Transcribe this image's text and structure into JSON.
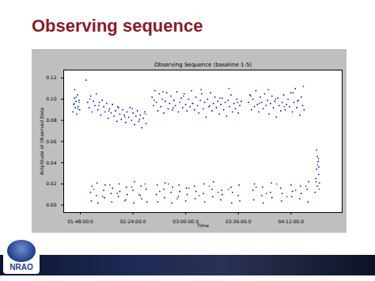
{
  "slide_title": "Observing sequence",
  "logo": "NRAO",
  "chart_data": {
    "type": "scatter",
    "title": "Observing Sequence (baseline 1-5)",
    "x_label": "Time",
    "y_label": "Amplitude of Observed Data",
    "xlim": [
      96.6,
      287
    ],
    "xticks": [
      {
        "value": 108,
        "label": "01:48:00.0"
      },
      {
        "value": 144,
        "label": "02:24:00.0"
      },
      {
        "value": 180,
        "label": "03:00:00.0"
      },
      {
        "value": 216,
        "label": "03:36:00.0"
      },
      {
        "value": 252,
        "label": "04:12:00.0"
      }
    ],
    "ylim": [
      -0.007,
      0.1275
    ],
    "yticks": [
      {
        "value": 0,
        "label": "0.00"
      },
      {
        "value": 0.02,
        "label": "0.02"
      },
      {
        "value": 0.04,
        "label": "0.04"
      },
      {
        "value": 0.06,
        "label": "0.06"
      },
      {
        "value": 0.08,
        "label": "0.08"
      },
      {
        "value": 0.1,
        "label": "0.10"
      },
      {
        "value": 0.12,
        "label": "0.12"
      }
    ],
    "grid": false,
    "series": [
      {
        "color": "#0000ff",
        "marker": "o",
        "x": [
          103,
          103.5,
          104,
          104.5,
          105,
          105.5,
          106,
          106.5,
          107,
          107.5,
          112,
          113,
          114,
          115,
          116,
          117,
          118,
          119,
          120,
          121,
          122,
          123,
          124,
          125,
          126,
          127,
          128,
          129,
          130,
          131,
          132,
          133,
          134,
          135,
          136,
          137,
          138,
          139,
          140,
          141,
          142,
          143,
          144,
          145,
          146,
          147,
          148,
          149,
          150,
          151,
          152,
          153,
          115,
          115.5,
          116,
          119,
          119.5,
          120,
          124,
          124.5,
          125,
          129,
          129.5,
          130,
          134,
          134.5,
          135,
          139,
          139.5,
          140,
          144,
          144.5,
          145,
          149,
          149.5,
          150,
          153,
          153.5,
          157,
          158,
          159,
          160,
          161,
          162,
          163,
          164,
          165,
          166,
          167,
          168,
          169,
          170,
          171,
          172,
          173,
          174,
          175,
          176,
          177,
          178,
          179,
          180,
          181,
          182,
          183,
          184,
          185,
          186,
          187,
          188,
          189,
          190,
          191,
          192,
          193,
          194,
          195,
          196,
          197,
          198,
          199,
          200,
          201,
          202,
          203,
          204,
          205,
          206,
          207,
          208,
          209,
          210,
          211,
          212,
          213,
          214,
          215,
          216,
          217,
          218,
          160,
          160.5,
          161,
          165,
          165.5,
          166,
          170,
          170.5,
          171,
          175,
          175.5,
          176,
          180,
          180.5,
          181,
          186,
          186.5,
          187,
          192,
          192.5,
          193,
          198,
          198.5,
          199,
          204,
          204.5,
          205,
          211,
          211.5,
          212,
          216,
          216.5,
          217,
          223,
          224,
          225,
          226,
          227,
          228,
          229,
          230,
          231,
          232,
          233,
          234,
          235,
          236,
          237,
          238,
          239,
          240,
          241,
          242,
          243,
          244,
          245,
          246,
          247,
          248,
          249,
          250,
          251,
          252,
          253,
          254,
          255,
          256,
          257,
          258,
          259,
          260,
          261,
          226,
          226.5,
          227,
          232,
          232.5,
          233,
          238,
          238.5,
          239,
          245,
          245.5,
          246,
          252,
          252.5,
          253,
          258,
          258.5,
          259,
          263,
          263.5,
          264,
          268.5,
          269,
          269.5,
          270,
          270.5,
          271,
          271.5,
          270,
          269.5,
          271
        ],
        "values": [
          0.088,
          0.095,
          0.101,
          0.092,
          0.098,
          0.086,
          0.104,
          0.093,
          0.099,
          0.09,
          0.118,
          0.097,
          0.092,
          0.103,
          0.088,
          0.098,
          0.094,
          0.105,
          0.09,
          0.097,
          0.085,
          0.099,
          0.093,
          0.088,
          0.096,
          0.082,
          0.091,
          0.087,
          0.095,
          0.084,
          0.089,
          0.079,
          0.092,
          0.086,
          0.081,
          0.09,
          0.085,
          0.078,
          0.088,
          0.083,
          0.092,
          0.08,
          0.087,
          0.076,
          0.084,
          0.089,
          0.079,
          0.085,
          0.073,
          0.082,
          0.088,
          0.077,
          0.012,
          0.004,
          0.018,
          0.009,
          0.021,
          0.002,
          0.014,
          0.007,
          0.019,
          0.011,
          0.003,
          0.016,
          0.008,
          0.02,
          0.013,
          0.005,
          0.017,
          0.01,
          0.014,
          0.002,
          0.022,
          0.009,
          0.018,
          0.006,
          0.015,
          0.003,
          0.102,
          0.094,
          0.108,
          0.097,
          0.089,
          0.105,
          0.093,
          0.1,
          0.087,
          0.098,
          0.106,
          0.091,
          0.096,
          0.103,
          0.09,
          0.099,
          0.094,
          0.107,
          0.088,
          0.097,
          0.101,
          0.092,
          0.105,
          0.095,
          0.089,
          0.1,
          0.093,
          0.108,
          0.096,
          0.09,
          0.102,
          0.094,
          0.087,
          0.099,
          0.105,
          0.091,
          0.097,
          0.083,
          0.1,
          0.093,
          0.106,
          0.089,
          0.096,
          0.102,
          0.092,
          0.098,
          0.086,
          0.095,
          0.101,
          0.09,
          0.097,
          0.084,
          0.099,
          0.093,
          0.104,
          0.088,
          0.096,
          0.091,
          0.1,
          0.087,
          0.094,
          0.098,
          0.01,
          0.019,
          0.003,
          0.015,
          0.007,
          0.021,
          0.012,
          0.002,
          0.017,
          0.008,
          0.019,
          0.013,
          0.004,
          0.016,
          0.01,
          0.018,
          0.006,
          0.013,
          0.011,
          0.02,
          0.003,
          0.015,
          0.008,
          0.022,
          0.005,
          0.014,
          0.01,
          0.017,
          0.002,
          0.012,
          0.009,
          0.019,
          0.004,
          0.097,
          0.104,
          0.09,
          0.1,
          0.093,
          0.108,
          0.095,
          0.088,
          0.102,
          0.097,
          0.091,
          0.105,
          0.094,
          0.099,
          0.086,
          0.096,
          0.103,
          0.092,
          0.098,
          0.083,
          0.101,
          0.094,
          0.089,
          0.097,
          0.104,
          0.09,
          0.095,
          0.1,
          0.093,
          0.106,
          0.088,
          0.097,
          0.11,
          0.092,
          0.099,
          0.085,
          0.102,
          0.094,
          0.09,
          0.014,
          0.005,
          0.02,
          0.009,
          0.017,
          0.002,
          0.012,
          0.021,
          0.007,
          0.016,
          0.004,
          0.011,
          0.019,
          0.008,
          0.013,
          0.006,
          0.018,
          0.011,
          0.015,
          0.003,
          0.022,
          0.012,
          0.025,
          0.034,
          0.018,
          0.041,
          0.029,
          0.021,
          0.046,
          0.052,
          0.036
        ]
      },
      {
        "color": "#008000",
        "marker": "o",
        "x": [
          103.8,
          105.2,
          106.2,
          104.2,
          107.2,
          114.5,
          120.5,
          127.5,
          133.5,
          138.5,
          143.5,
          148.5,
          152.5,
          117.2,
          123.2,
          128.2,
          133.2,
          138.2,
          143.2,
          148.2,
          152.2,
          158.5,
          164.5,
          171.5,
          178.5,
          184.5,
          190.5,
          196.5,
          203.5,
          209.5,
          215.5,
          162.2,
          168.2,
          174.2,
          182.2,
          189.2,
          196.2,
          202.2,
          209.2,
          224.5,
          230.5,
          236.5,
          241.5,
          247.5,
          253.5,
          256.5,
          260.5,
          228.2,
          235.2,
          242.2,
          249.2,
          255.2,
          262.2,
          269.2,
          270.2,
          271.2,
          270.8
        ],
        "values": [
          0.096,
          0.102,
          0.091,
          0.109,
          0.097,
          0.1,
          0.094,
          0.089,
          0.093,
          0.083,
          0.091,
          0.081,
          0.086,
          0.015,
          0.008,
          0.019,
          0.011,
          0.004,
          0.017,
          0.01,
          0.02,
          0.099,
          0.107,
          0.092,
          0.103,
          0.096,
          0.109,
          0.094,
          0.101,
          0.11,
          0.097,
          0.013,
          0.02,
          0.006,
          0.016,
          0.009,
          0.018,
          0.012,
          0.015,
          0.103,
          0.096,
          0.109,
          0.1,
          0.093,
          0.106,
          0.098,
          0.112,
          0.017,
          0.011,
          0.02,
          0.008,
          0.014,
          0.018,
          0.022,
          0.038,
          0.015,
          0.044
        ]
      }
    ]
  }
}
